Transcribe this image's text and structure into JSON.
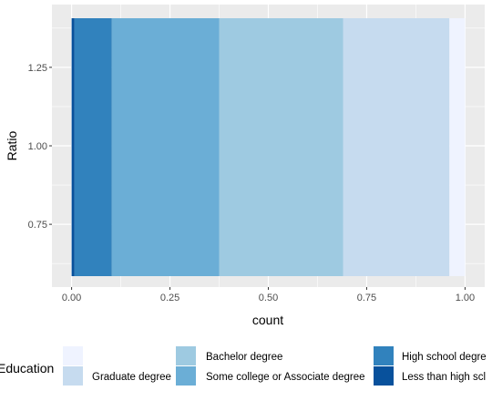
{
  "chart_data": {
    "type": "bar",
    "orientation": "horizontal",
    "stacked": true,
    "position": "fill",
    "xlabel": "count",
    "ylabel": "Ratio",
    "xlim": [
      -0.05,
      1.05
    ],
    "ylim": [
      0.55,
      1.45
    ],
    "bar_y_center": 1.0,
    "bar_y_range": [
      0.55,
      1.45
    ],
    "x_ticks": [
      0.0,
      0.25,
      0.5,
      0.75,
      1.0
    ],
    "x_tick_labels": [
      "0.00",
      "0.25",
      "0.50",
      "0.75",
      "1.00"
    ],
    "y_ticks": [
      0.75,
      1.0,
      1.25
    ],
    "y_tick_labels": [
      "0.75",
      "1.00",
      "1.25"
    ],
    "grid": true,
    "legend_title": "Education",
    "legend_position": "bottom",
    "categories": [
      "",
      "Graduate degree",
      "Bachelor degree",
      "Some college or Associate degree",
      "High school degree",
      "Less than high school"
    ],
    "legend_labels_visible": [
      "",
      "Graduate degree",
      "Bachelor degree",
      "Some college or Associate degree",
      "High school degre",
      "Less than high scl"
    ],
    "series": [
      {
        "name": "",
        "start": 0.96,
        "end": 1.0,
        "value": 0.04,
        "color": "#EFF3FF"
      },
      {
        "name": "Graduate degree",
        "start": 0.69,
        "end": 0.96,
        "value": 0.27,
        "color": "#C6DBEF"
      },
      {
        "name": "Bachelor degree",
        "start": 0.375,
        "end": 0.69,
        "value": 0.315,
        "color": "#9ECAE1"
      },
      {
        "name": "Some college or Associate degree",
        "start": 0.102,
        "end": 0.375,
        "value": 0.273,
        "color": "#6BAED6"
      },
      {
        "name": "High school degree",
        "start": 0.007,
        "end": 0.102,
        "value": 0.095,
        "color": "#3182BD"
      },
      {
        "name": "Less than high school",
        "start": 0.0,
        "end": 0.007,
        "value": 0.007,
        "color": "#08519C"
      }
    ],
    "panel_background": "#EBEBEB",
    "grid_color": "#FFFFFF"
  }
}
